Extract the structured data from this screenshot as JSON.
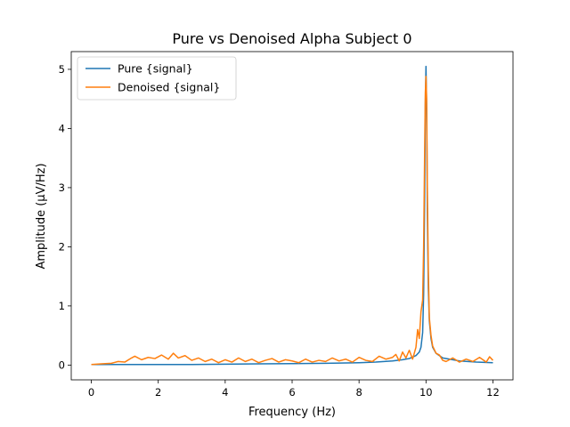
{
  "chart_data": {
    "type": "line",
    "title": "Pure vs Denoised Alpha Subject 0",
    "xlabel": "Frequency (Hz)",
    "ylabel": "Amplitude (μV/Hz)",
    "xlim": [
      -0.6,
      12.6
    ],
    "ylim": [
      -0.25,
      5.3
    ],
    "xticks": [
      0,
      2,
      4,
      6,
      8,
      10,
      12
    ],
    "yticks": [
      0,
      1,
      2,
      3,
      4,
      5
    ],
    "grid": false,
    "legend": {
      "placement": "top-left"
    },
    "series": [
      {
        "name": "Pure {signal}",
        "color": "#1f77b4",
        "x": [
          0,
          0.5,
          1.0,
          2.0,
          3.0,
          4.0,
          5.0,
          6.0,
          7.0,
          8.0,
          8.5,
          9.0,
          9.3,
          9.5,
          9.7,
          9.8,
          9.85,
          9.9,
          9.93,
          9.96,
          9.98,
          10.0,
          10.02,
          10.04,
          10.07,
          10.1,
          10.15,
          10.2,
          10.3,
          10.5,
          10.8,
          11.0,
          11.5,
          12.0
        ],
        "y": [
          0.01,
          0.01,
          0.01,
          0.01,
          0.01,
          0.015,
          0.02,
          0.025,
          0.03,
          0.04,
          0.05,
          0.07,
          0.09,
          0.11,
          0.16,
          0.22,
          0.3,
          0.55,
          1.2,
          2.8,
          4.4,
          5.05,
          4.3,
          2.6,
          1.3,
          0.75,
          0.45,
          0.3,
          0.2,
          0.12,
          0.09,
          0.07,
          0.05,
          0.04
        ]
      },
      {
        "name": "Denoised {signal}",
        "color": "#ff7f0e",
        "x": [
          0,
          0.3,
          0.6,
          0.8,
          1.0,
          1.2,
          1.3,
          1.5,
          1.7,
          1.9,
          2.1,
          2.3,
          2.45,
          2.6,
          2.8,
          3.0,
          3.2,
          3.4,
          3.6,
          3.8,
          4.0,
          4.2,
          4.4,
          4.6,
          4.8,
          5.0,
          5.2,
          5.4,
          5.6,
          5.8,
          6.0,
          6.2,
          6.4,
          6.6,
          6.8,
          7.0,
          7.2,
          7.4,
          7.6,
          7.8,
          8.0,
          8.2,
          8.4,
          8.6,
          8.8,
          9.0,
          9.1,
          9.2,
          9.3,
          9.4,
          9.5,
          9.6,
          9.7,
          9.75,
          9.8,
          9.85,
          9.9,
          9.93,
          9.96,
          9.98,
          10.0,
          10.02,
          10.04,
          10.07,
          10.1,
          10.15,
          10.2,
          10.3,
          10.4,
          10.5,
          10.6,
          10.8,
          11.0,
          11.2,
          11.4,
          11.6,
          11.8,
          11.9,
          12.0
        ],
        "y": [
          0.01,
          0.02,
          0.03,
          0.06,
          0.05,
          0.12,
          0.15,
          0.09,
          0.13,
          0.11,
          0.17,
          0.1,
          0.2,
          0.12,
          0.16,
          0.08,
          0.12,
          0.06,
          0.1,
          0.04,
          0.09,
          0.05,
          0.12,
          0.06,
          0.1,
          0.04,
          0.08,
          0.11,
          0.05,
          0.09,
          0.07,
          0.04,
          0.1,
          0.05,
          0.08,
          0.06,
          0.12,
          0.07,
          0.1,
          0.05,
          0.13,
          0.08,
          0.06,
          0.15,
          0.1,
          0.13,
          0.18,
          0.07,
          0.22,
          0.12,
          0.25,
          0.1,
          0.3,
          0.6,
          0.45,
          0.9,
          1.1,
          2.0,
          3.6,
          4.6,
          4.88,
          4.5,
          3.0,
          1.6,
          0.8,
          0.5,
          0.32,
          0.2,
          0.17,
          0.08,
          0.06,
          0.12,
          0.05,
          0.1,
          0.06,
          0.13,
          0.05,
          0.14,
          0.08
        ]
      }
    ]
  }
}
